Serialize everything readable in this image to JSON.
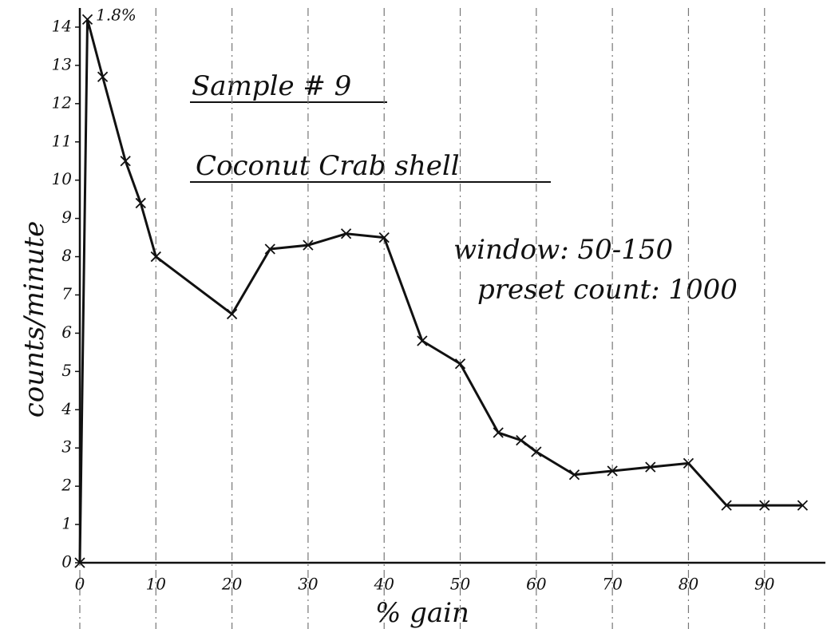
{
  "chart_data": {
    "type": "line",
    "title": "Sample # 9",
    "subtitle": "Coconut Crab shell",
    "annotations": [
      "window: 50-150",
      "preset count: 1000",
      "1.8%"
    ],
    "x_label": "% gain",
    "y_label": "counts/minute",
    "x": [
      0,
      1,
      3,
      6,
      8,
      10,
      20,
      25,
      30,
      35,
      40,
      45,
      50,
      55,
      58,
      60,
      65,
      70,
      75,
      80,
      85,
      90,
      95
    ],
    "values": [
      0,
      14.2,
      12.7,
      10.5,
      9.4,
      8.0,
      6.5,
      8.2,
      8.3,
      8.6,
      8.5,
      5.8,
      5.2,
      3.4,
      3.2,
      2.9,
      2.3,
      2.4,
      2.5,
      2.6,
      1.5,
      1.5,
      1.5
    ],
    "color": "#111111",
    "xlim": [
      0,
      98
    ],
    "ylim": [
      0,
      14.5
    ],
    "xticks": [
      0,
      10,
      20,
      30,
      40,
      50,
      60,
      70,
      80,
      90
    ],
    "yticks": [
      0,
      1,
      2,
      3,
      4,
      5,
      6,
      7,
      8,
      9,
      10,
      11,
      12,
      13,
      14
    ],
    "grid": true
  }
}
